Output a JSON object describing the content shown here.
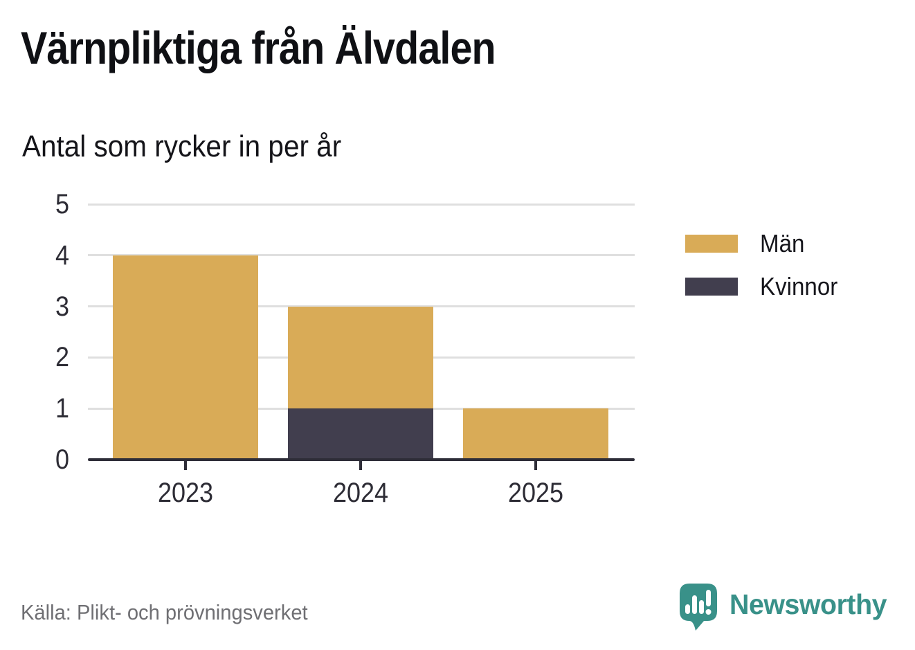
{
  "title": "Värnpliktiga från Älvdalen",
  "subtitle": "Antal som rycker in per år",
  "source": "Källa: Plikt- och prövningsverket",
  "branding": {
    "name": "Newsworthy",
    "icon": "newsworthy-logo-icon",
    "color": "#399189"
  },
  "colors": {
    "men": "#d9ab57",
    "women": "#413e4e",
    "axis": "#2e2d38",
    "grid": "#dfdfdf",
    "tick_label": "#2d2c35",
    "source_text": "#6f6f73"
  },
  "chart_data": {
    "type": "bar",
    "stacked": true,
    "title": "Värnpliktiga från Älvdalen",
    "subtitle": "Antal som rycker in per år",
    "categories": [
      "2023",
      "2024",
      "2025"
    ],
    "series": [
      {
        "name": "Män",
        "color": "#d9ab57",
        "values": [
          4,
          2,
          1
        ]
      },
      {
        "name": "Kvinnor",
        "color": "#413e4e",
        "values": [
          0,
          1,
          0
        ]
      }
    ],
    "stack_order_bottom_to_top": [
      "Kvinnor",
      "Män"
    ],
    "totals": [
      4,
      3,
      1
    ],
    "xlabel": "",
    "ylabel": "",
    "ylim": [
      0,
      5
    ],
    "yticks": [
      0,
      1,
      2,
      3,
      4,
      5
    ],
    "grid": true,
    "legend_position": "right-top"
  }
}
